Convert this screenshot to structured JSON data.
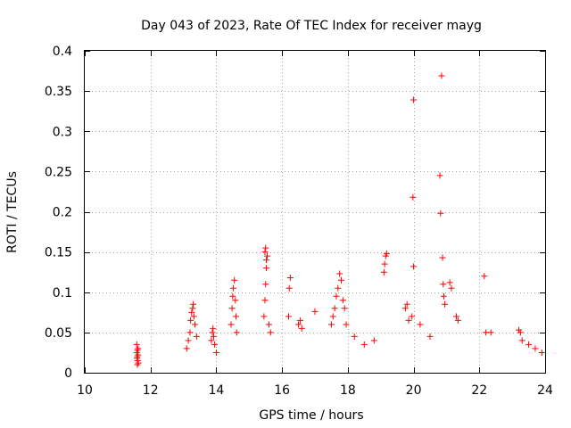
{
  "chart_data": {
    "type": "scatter",
    "title": "Day 043 of 2023, Rate Of TEC Index for receiver mayg",
    "xlabel": "GPS time / hours",
    "ylabel": "ROTI / TECUs",
    "xlim": [
      10,
      24
    ],
    "ylim": [
      0,
      0.4
    ],
    "xticks": [
      10,
      12,
      14,
      16,
      18,
      20,
      22,
      24
    ],
    "xtick_labels": [
      "10",
      "12",
      "14",
      "16",
      "18",
      "20",
      "22",
      "24"
    ],
    "yticks": [
      0,
      0.05,
      0.1,
      0.15,
      0.2,
      0.25,
      0.3,
      0.35,
      0.4
    ],
    "ytick_labels": [
      "0",
      "0.05",
      "0.1",
      "0.15",
      "0.2",
      "0.25",
      "0.3",
      "0.35",
      "0.4"
    ],
    "grid": true,
    "marker": "+",
    "color": "#ff0000",
    "series": [
      {
        "name": "ROTI",
        "x": [
          11.58,
          11.6,
          11.62,
          11.59,
          11.61,
          11.63,
          11.58,
          11.6,
          11.62,
          11.6,
          13.2,
          13.22,
          13.25,
          13.28,
          13.3,
          13.32,
          13.35,
          13.1,
          13.15,
          13.4,
          13.85,
          13.88,
          13.9,
          13.92,
          13.95,
          14.0,
          14.45,
          14.48,
          14.5,
          14.52,
          14.55,
          14.58,
          14.6,
          14.62,
          15.45,
          15.48,
          15.5,
          15.52,
          15.55,
          15.5,
          15.48,
          15.52,
          15.6,
          15.65,
          16.2,
          16.22,
          16.25,
          16.5,
          16.55,
          16.6,
          17.0,
          17.5,
          17.55,
          17.6,
          17.65,
          17.7,
          17.75,
          17.8,
          17.85,
          17.9,
          17.95,
          18.2,
          18.5,
          18.8,
          19.1,
          19.12,
          19.15,
          19.18,
          19.75,
          19.8,
          19.85,
          19.95,
          19.98,
          20.0,
          20.0,
          20.2,
          20.5,
          20.8,
          20.82,
          20.85,
          20.88,
          20.9,
          20.92,
          20.95,
          21.1,
          21.15,
          21.3,
          21.35,
          22.15,
          22.2,
          22.35,
          23.2,
          23.25,
          23.3,
          23.5,
          23.7,
          23.9
        ],
        "y": [
          0.035,
          0.028,
          0.022,
          0.018,
          0.015,
          0.012,
          0.025,
          0.02,
          0.03,
          0.01,
          0.05,
          0.065,
          0.075,
          0.08,
          0.085,
          0.07,
          0.06,
          0.03,
          0.04,
          0.045,
          0.04,
          0.05,
          0.055,
          0.045,
          0.035,
          0.025,
          0.06,
          0.08,
          0.095,
          0.105,
          0.115,
          0.09,
          0.07,
          0.05,
          0.07,
          0.09,
          0.11,
          0.13,
          0.145,
          0.155,
          0.15,
          0.14,
          0.06,
          0.05,
          0.07,
          0.105,
          0.118,
          0.06,
          0.065,
          0.055,
          0.076,
          0.06,
          0.07,
          0.08,
          0.095,
          0.105,
          0.123,
          0.115,
          0.09,
          0.08,
          0.06,
          0.045,
          0.035,
          0.04,
          0.125,
          0.135,
          0.145,
          0.148,
          0.08,
          0.085,
          0.065,
          0.07,
          0.218,
          0.339,
          0.132,
          0.06,
          0.045,
          0.245,
          0.198,
          0.369,
          0.143,
          0.11,
          0.095,
          0.085,
          0.112,
          0.105,
          0.07,
          0.065,
          0.12,
          0.05,
          0.05,
          0.053,
          0.05,
          0.04,
          0.035,
          0.03,
          0.025
        ]
      }
    ]
  }
}
